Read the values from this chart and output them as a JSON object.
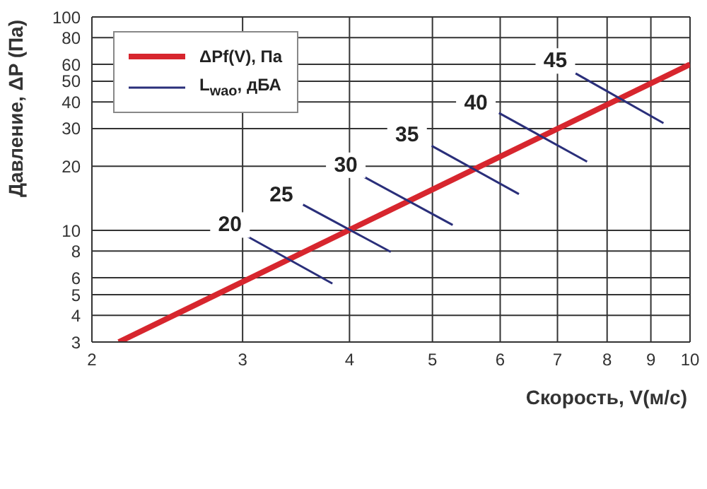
{
  "chart_data": {
    "type": "line",
    "xlabel": "Скорость, V(м/с)",
    "ylabel": "Давление, ΔP (Па)",
    "log": "xy",
    "grid": true,
    "legend": "top left",
    "marker": "none",
    "line_style": "solid",
    "xlim": [
      2,
      10
    ],
    "xticks": [
      2,
      3,
      4,
      5,
      6,
      7,
      8,
      9,
      10
    ],
    "ylim": [
      3,
      100
    ],
    "yticks": [
      3,
      4,
      5,
      6,
      8,
      10,
      20,
      30,
      40,
      50,
      60,
      80,
      100
    ],
    "series": [
      {
        "name": "ΔPf(V), Па",
        "color": "#d7262e",
        "x": [
          2.15,
          10
        ],
        "values": [
          3,
          60
        ]
      },
      {
        "name": "L$_{wao}$, дБА",
        "color": "#2a2f7a",
        "x": [
          3.02,
          3.82,
          null,
          3.53,
          4.47,
          null,
          4.15,
          5.28,
          null,
          4.99,
          6.31,
          null,
          5.98,
          7.58,
          null,
          7.35,
          9.31
        ],
        "values": [
          9.5,
          5.64,
          null,
          13.2,
          7.93,
          null,
          17.9,
          10.6,
          null,
          24.9,
          14.8,
          null,
          35.5,
          21.0,
          null,
          54.4,
          31.8
        ]
      }
    ],
    "annotations": [
      {
        "text": "20",
        "x": 2.9,
        "y": 10.6
      },
      {
        "text": "25",
        "x": 3.33,
        "y": 14.6
      },
      {
        "text": "30",
        "x": 3.96,
        "y": 20.2
      },
      {
        "text": "35",
        "x": 4.67,
        "y": 28.1
      },
      {
        "text": "40",
        "x": 5.62,
        "y": 39.6
      },
      {
        "text": "45",
        "x": 6.96,
        "y": 62.2
      }
    ]
  }
}
